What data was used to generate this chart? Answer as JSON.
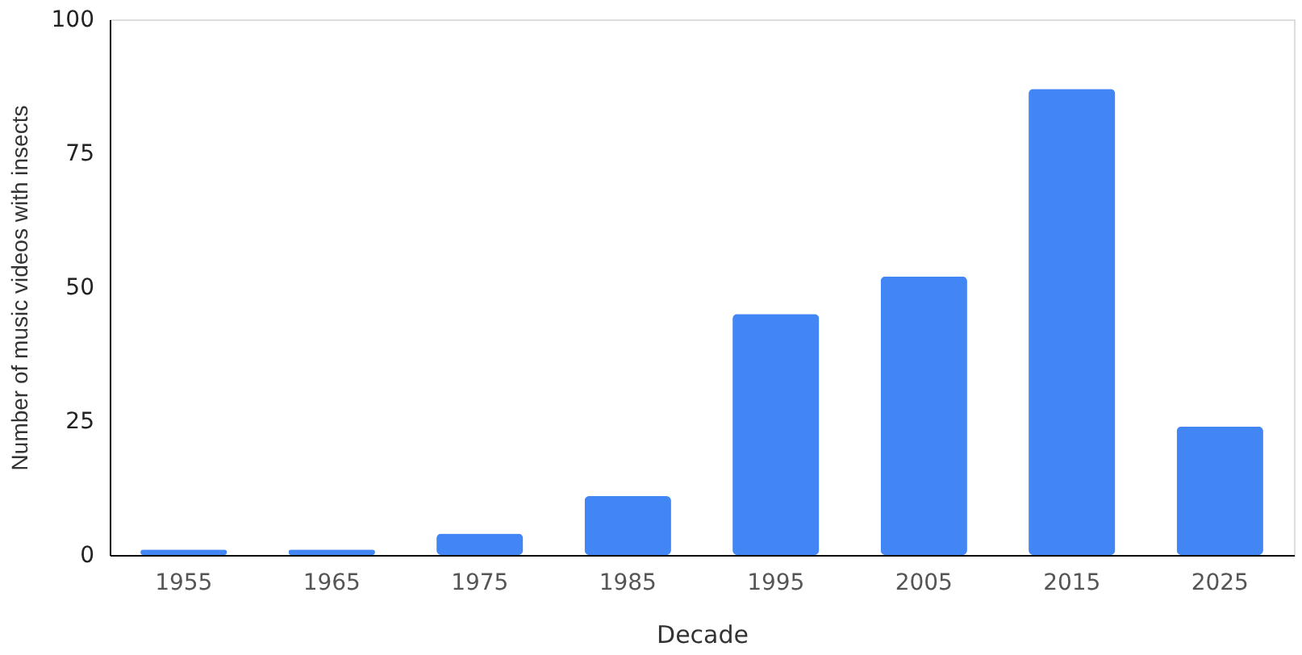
{
  "chart_data": {
    "type": "bar",
    "xlabel": "Decade",
    "ylabel": "Number of music videos with insects",
    "categories": [
      "1955",
      "1965",
      "1975",
      "1985",
      "1995",
      "2005",
      "2015",
      "2025"
    ],
    "values": [
      1,
      1,
      4,
      11,
      45,
      52,
      87,
      24
    ],
    "color": "#4285f4",
    "ylim": [
      0,
      100
    ],
    "yticks": [
      0,
      25,
      50,
      75,
      100
    ],
    "grid": false
  }
}
